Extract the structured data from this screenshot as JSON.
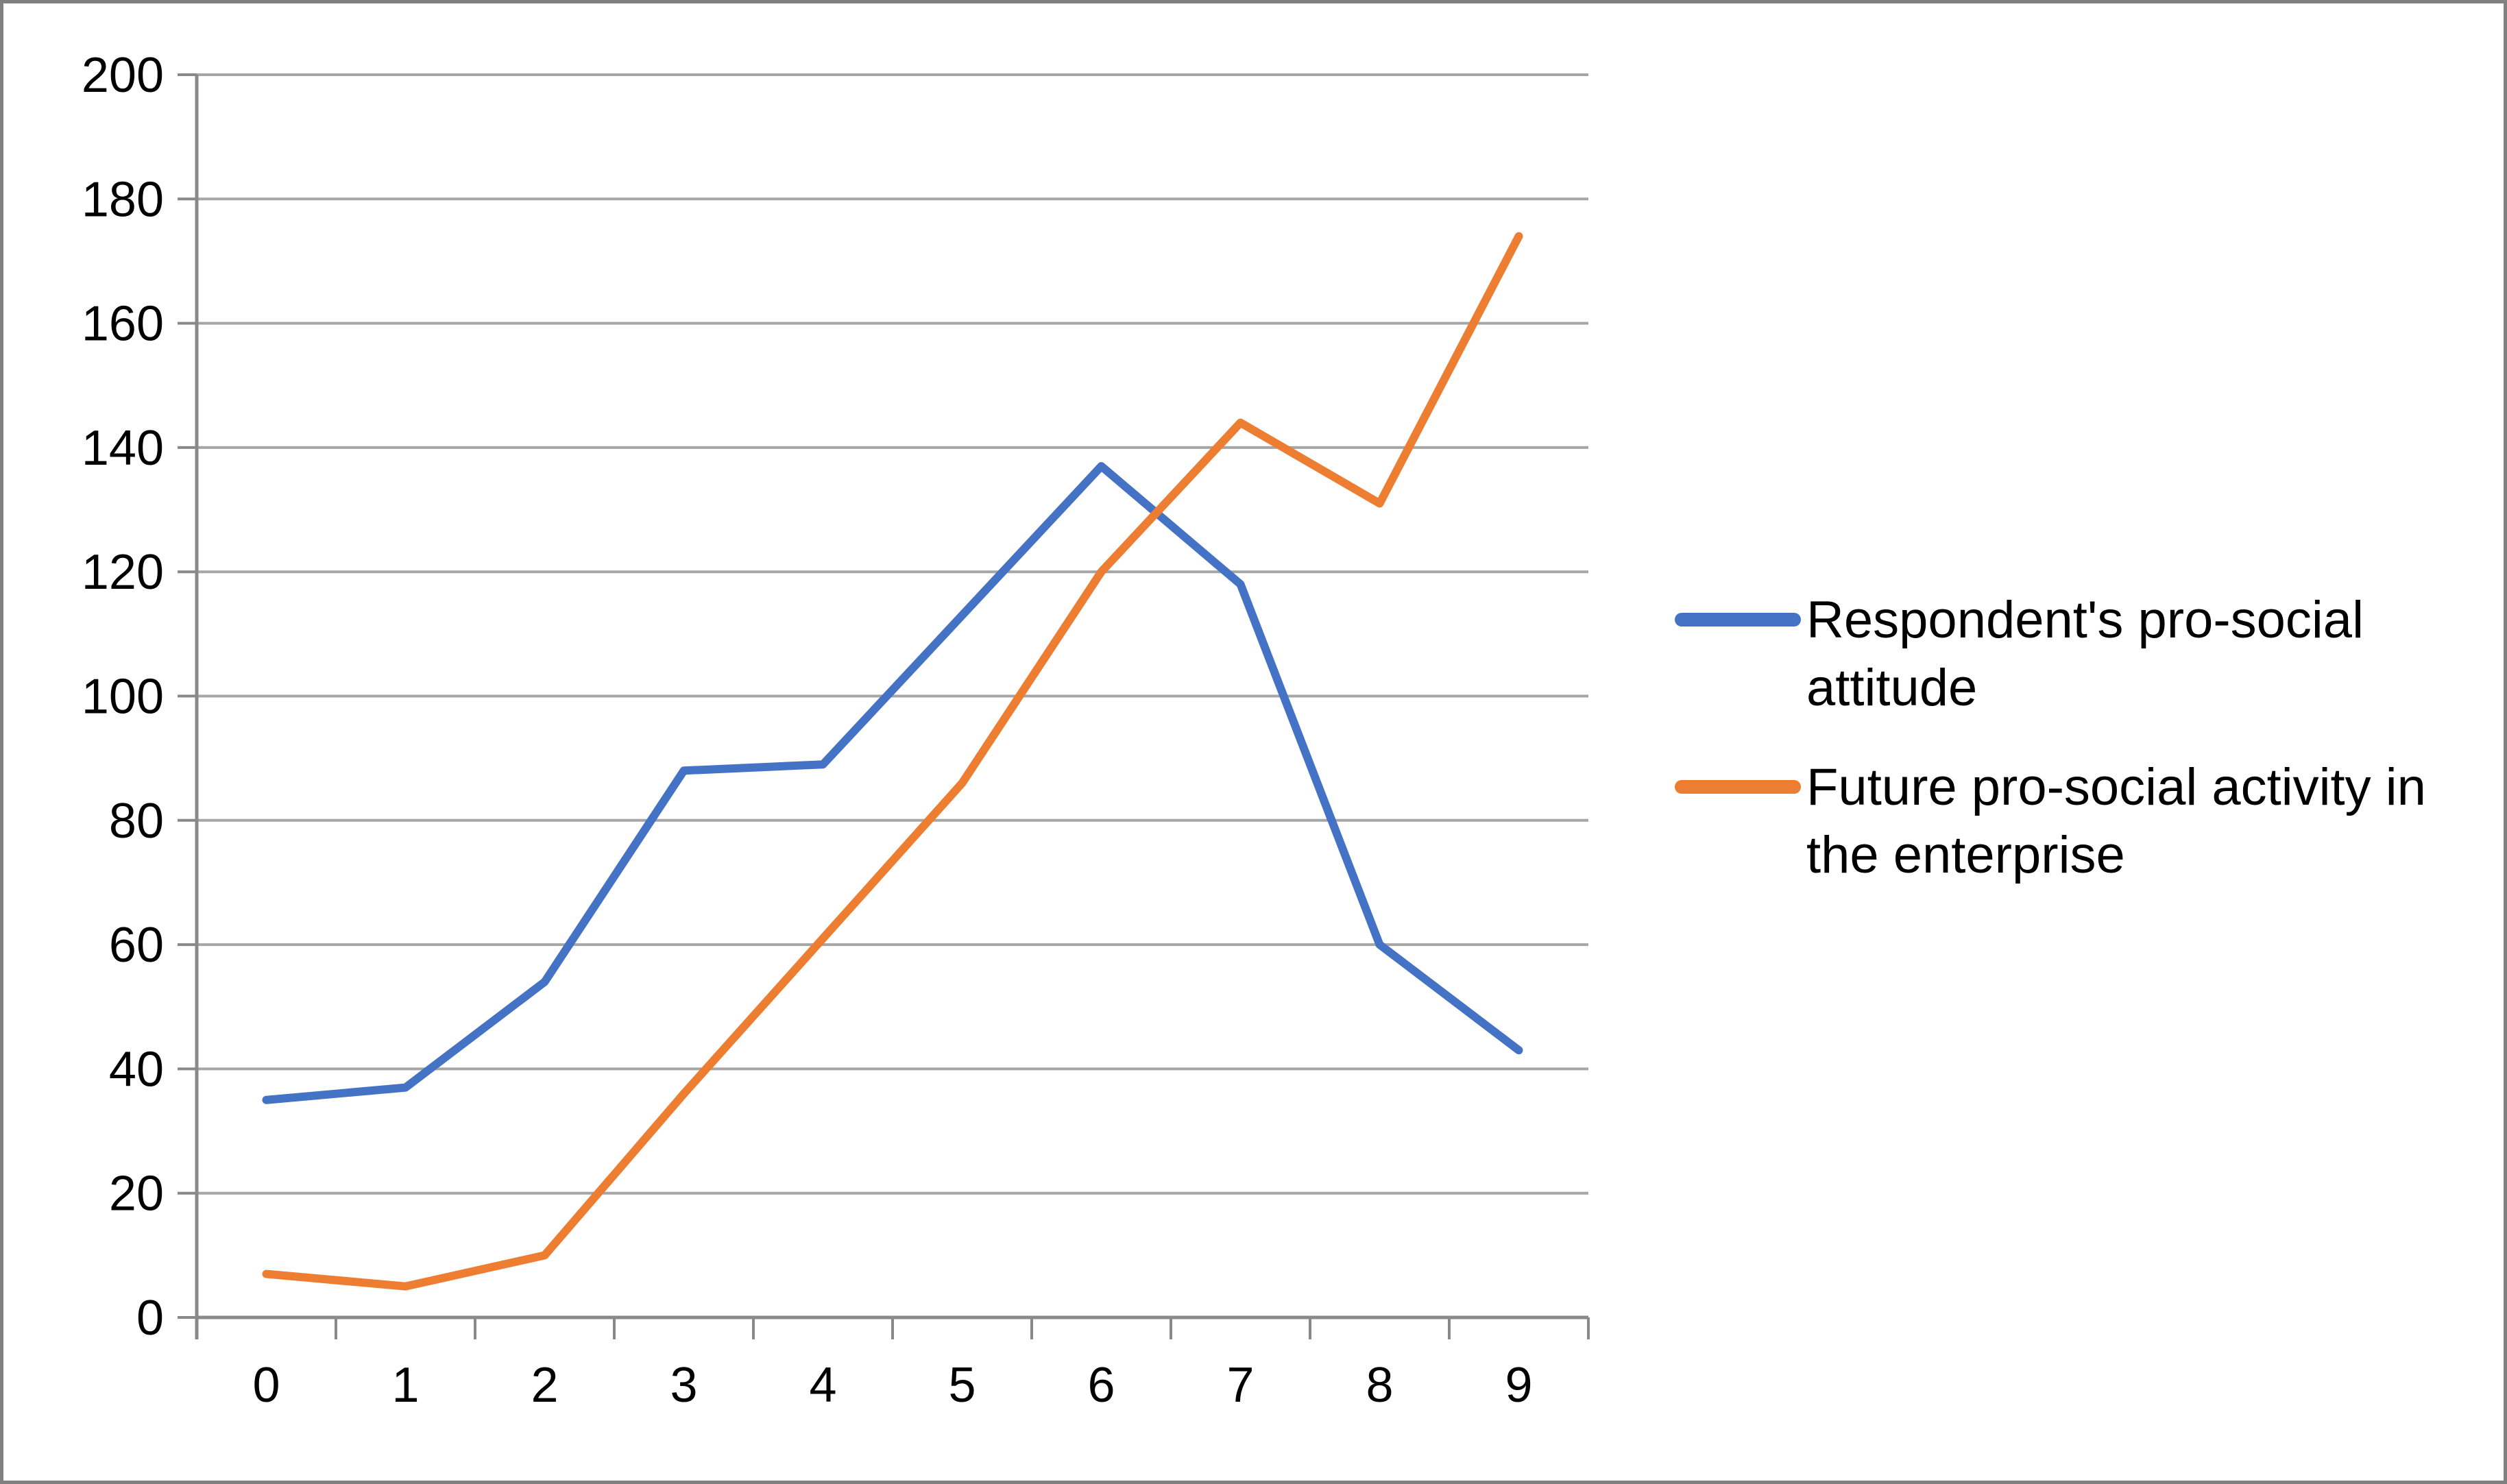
{
  "chart_data": {
    "type": "line",
    "title": "",
    "xlabel": "",
    "ylabel": "",
    "categories": [
      "0",
      "1",
      "2",
      "3",
      "4",
      "5",
      "6",
      "7",
      "8",
      "9"
    ],
    "series": [
      {
        "name": "Respondent's pro-social attitude",
        "color": "#4472C4",
        "values": [
          35,
          37,
          54,
          88,
          89,
          113,
          137,
          118,
          60,
          43
        ],
        "legend_lines": [
          "Respondent's pro-social",
          "attitude"
        ]
      },
      {
        "name": "Future pro-social activity in the enterprise",
        "color": "#ED7D31",
        "values": [
          7,
          5,
          10,
          36,
          61,
          86,
          120,
          144,
          131,
          174
        ],
        "legend_lines": [
          "Future pro-social activity in",
          "the enterprise"
        ]
      }
    ],
    "ylim": [
      0,
      200
    ],
    "ytick_step": 20,
    "ytick_labels": [
      "0",
      "20",
      "40",
      "60",
      "80",
      "100",
      "120",
      "140",
      "160",
      "180",
      "200"
    ],
    "grid": "horizontal",
    "legend_position": "right"
  },
  "colors": {
    "series_blue": "#4472C4",
    "series_orange": "#ED7D31",
    "gridline": "#A6A6A6",
    "axis": "#898989",
    "tick": "#898989",
    "text": "#000000",
    "border": "#808080",
    "background": "#FFFFFF"
  }
}
